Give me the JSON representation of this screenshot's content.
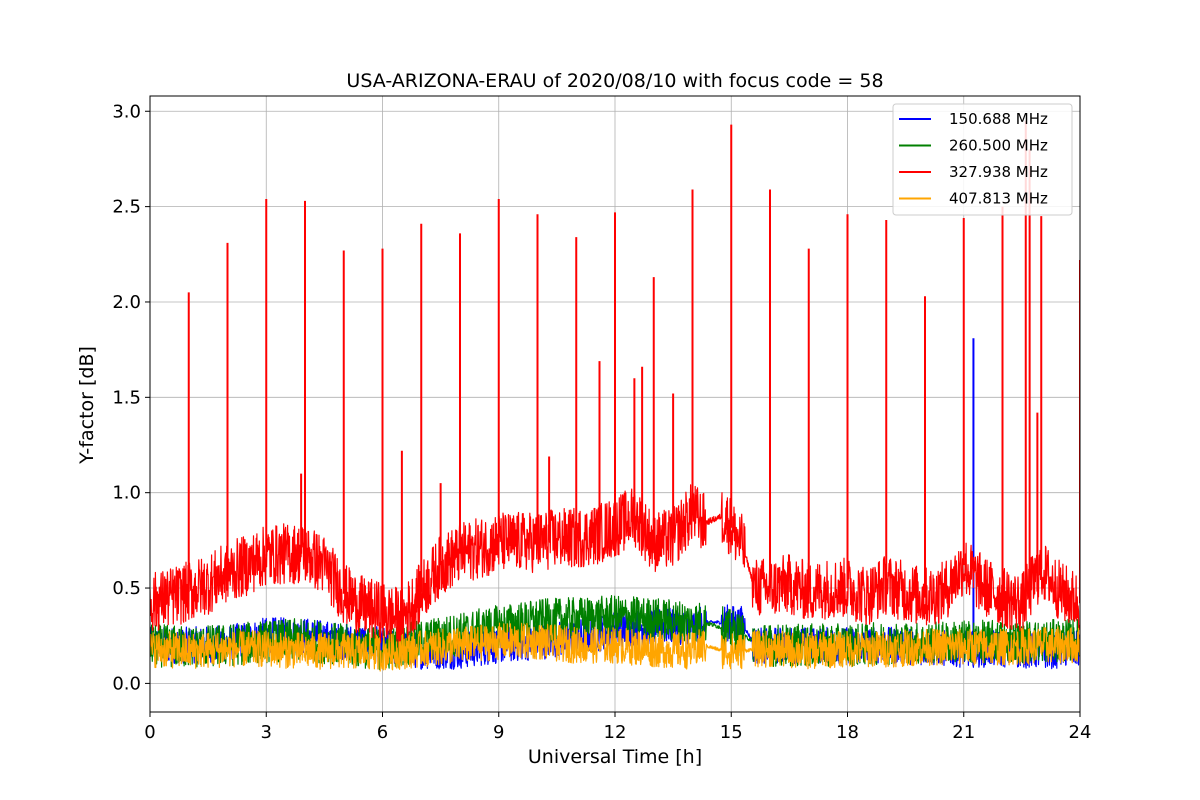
{
  "chart_data": {
    "type": "line",
    "title": "USA-ARIZONA-ERAU of 2020/08/10 with focus code = 58",
    "xlabel": "Universal Time [h]",
    "ylabel": "Y-factor [dB]",
    "xlim": [
      0,
      24
    ],
    "ylim": [
      -0.15,
      3.08
    ],
    "xticks": [
      0,
      3,
      6,
      9,
      12,
      15,
      18,
      21,
      24
    ],
    "xtick_labels": [
      "0",
      "3",
      "6",
      "9",
      "12",
      "15",
      "18",
      "21",
      "24"
    ],
    "yticks": [
      0.0,
      0.5,
      1.0,
      1.5,
      2.0,
      2.5,
      3.0
    ],
    "ytick_labels": [
      "0.0",
      "0.5",
      "1.0",
      "1.5",
      "2.0",
      "2.5",
      "3.0"
    ],
    "grid": true,
    "legend_position": "top-right",
    "series": [
      {
        "name": "150.688 MHz",
        "color": "#0000ff",
        "x": [
          0,
          1,
          2,
          3,
          4,
          5,
          6,
          7,
          8,
          9,
          10,
          11,
          12,
          13,
          14,
          14.3,
          14.8,
          15.3,
          15.6,
          16,
          17,
          18,
          19,
          20,
          21,
          21.3,
          22,
          23,
          24
        ],
        "y": [
          0.2,
          0.2,
          0.21,
          0.25,
          0.25,
          0.22,
          0.2,
          0.17,
          0.17,
          0.2,
          0.22,
          0.24,
          0.28,
          0.3,
          0.3,
          0.32,
          0.32,
          0.31,
          0.2,
          0.2,
          0.2,
          0.2,
          0.2,
          0.19,
          0.18,
          0.18,
          0.18,
          0.17,
          0.18
        ],
        "spikes": [
          {
            "x": 21.25,
            "y": 1.81
          }
        ]
      },
      {
        "name": "260.500 MHz",
        "color": "#008000",
        "x": [
          0,
          1,
          2,
          3,
          4,
          5,
          6,
          7,
          8,
          9,
          10,
          11,
          12,
          13,
          14,
          14.3,
          14.8,
          15.3,
          15.6,
          16,
          17,
          18,
          19,
          20,
          21,
          22,
          23,
          24
        ],
        "y": [
          0.2,
          0.19,
          0.2,
          0.22,
          0.23,
          0.2,
          0.18,
          0.22,
          0.26,
          0.3,
          0.33,
          0.34,
          0.35,
          0.34,
          0.32,
          0.32,
          0.29,
          0.25,
          0.22,
          0.2,
          0.2,
          0.2,
          0.21,
          0.21,
          0.22,
          0.22,
          0.22,
          0.23
        ],
        "spikes": []
      },
      {
        "name": "327.938 MHz",
        "color": "#ff0000",
        "x": [
          0,
          0.5,
          1,
          1.5,
          2,
          2.5,
          3,
          3.5,
          4,
          4.5,
          5,
          5.5,
          6,
          6.5,
          7,
          7.5,
          8,
          8.5,
          9,
          9.5,
          10,
          10.5,
          11,
          11.5,
          12,
          12.5,
          13,
          13.5,
          14,
          14.3,
          14.8,
          15.3,
          15.6,
          16,
          16.5,
          17,
          17.5,
          18,
          18.5,
          19,
          19.5,
          20,
          20.5,
          21,
          21.3,
          21.6,
          22,
          22.5,
          23,
          23.5,
          24
        ],
        "y": [
          0.42,
          0.45,
          0.48,
          0.52,
          0.58,
          0.62,
          0.67,
          0.68,
          0.68,
          0.62,
          0.47,
          0.4,
          0.37,
          0.34,
          0.48,
          0.62,
          0.68,
          0.71,
          0.74,
          0.74,
          0.74,
          0.76,
          0.76,
          0.78,
          0.82,
          0.88,
          0.74,
          0.76,
          0.9,
          0.84,
          0.88,
          0.72,
          0.5,
          0.5,
          0.52,
          0.48,
          0.5,
          0.5,
          0.46,
          0.52,
          0.48,
          0.45,
          0.48,
          0.62,
          0.55,
          0.5,
          0.45,
          0.42,
          0.6,
          0.48,
          0.42
        ],
        "spikes": [
          {
            "x": 1.0,
            "y": 2.05
          },
          {
            "x": 2.0,
            "y": 2.31
          },
          {
            "x": 3.0,
            "y": 2.54
          },
          {
            "x": 4.0,
            "y": 2.53
          },
          {
            "x": 3.9,
            "y": 1.1
          },
          {
            "x": 5.0,
            "y": 2.27
          },
          {
            "x": 6.0,
            "y": 2.28
          },
          {
            "x": 6.5,
            "y": 1.22
          },
          {
            "x": 7.0,
            "y": 2.41
          },
          {
            "x": 7.5,
            "y": 1.05
          },
          {
            "x": 8.0,
            "y": 2.36
          },
          {
            "x": 9.0,
            "y": 2.54
          },
          {
            "x": 10.0,
            "y": 2.46
          },
          {
            "x": 10.3,
            "y": 1.19
          },
          {
            "x": 11.0,
            "y": 2.34
          },
          {
            "x": 11.6,
            "y": 1.69
          },
          {
            "x": 12.0,
            "y": 2.47
          },
          {
            "x": 12.5,
            "y": 1.6
          },
          {
            "x": 12.7,
            "y": 1.66
          },
          {
            "x": 13.0,
            "y": 2.13
          },
          {
            "x": 13.5,
            "y": 1.52
          },
          {
            "x": 14.0,
            "y": 2.59
          },
          {
            "x": 15.0,
            "y": 2.93
          },
          {
            "x": 16.0,
            "y": 2.59
          },
          {
            "x": 17.0,
            "y": 2.28
          },
          {
            "x": 18.0,
            "y": 2.46
          },
          {
            "x": 19.0,
            "y": 2.43
          },
          {
            "x": 20.0,
            "y": 2.03
          },
          {
            "x": 21.0,
            "y": 2.44
          },
          {
            "x": 22.0,
            "y": 2.5
          },
          {
            "x": 22.6,
            "y": 2.95
          },
          {
            "x": 22.7,
            "y": 2.8
          },
          {
            "x": 22.9,
            "y": 1.42
          },
          {
            "x": 23.0,
            "y": 2.45
          },
          {
            "x": 24.0,
            "y": 2.22
          }
        ]
      },
      {
        "name": "407.813 MHz",
        "color": "#ffa500",
        "x": [
          0,
          1,
          2,
          3,
          4,
          5,
          6,
          7,
          8,
          9,
          10,
          11,
          12,
          13,
          14,
          14.3,
          14.8,
          15.3,
          15.6,
          16,
          17,
          18,
          19,
          20,
          21,
          22,
          23,
          24
        ],
        "y": [
          0.18,
          0.17,
          0.18,
          0.18,
          0.17,
          0.17,
          0.16,
          0.18,
          0.2,
          0.22,
          0.22,
          0.2,
          0.2,
          0.18,
          0.17,
          0.2,
          0.17,
          0.17,
          0.18,
          0.18,
          0.17,
          0.18,
          0.18,
          0.19,
          0.19,
          0.19,
          0.2,
          0.2
        ],
        "spikes": []
      }
    ]
  }
}
